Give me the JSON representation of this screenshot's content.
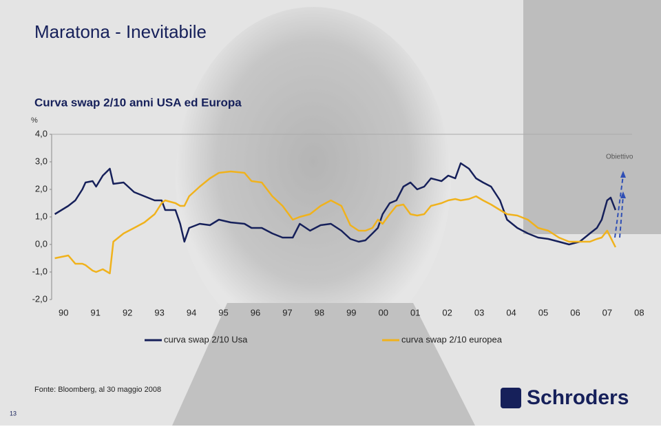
{
  "title": "Maratona - Inevitabile",
  "source": "Fonte: Bloomberg, al 30 maggio 2008",
  "page_number": "13",
  "logo": "Schroders",
  "chart_data": {
    "type": "line",
    "title": "Curva swap 2/10 anni USA ed Europa",
    "y_unit": "%",
    "annotation": "Obiettivo",
    "x": [
      1989.9,
      1990.32,
      1990.54,
      1990.76,
      1990.86,
      1991.08,
      1991.19,
      1991.4,
      1991.62,
      1991.73,
      1992.05,
      1992.38,
      1992.7,
      1993.02,
      1993.24,
      1993.35,
      1993.67,
      1993.82,
      1993.95,
      1994.1,
      1994.43,
      1994.75,
      1995.03,
      1995.4,
      1995.83,
      1996.05,
      1996.37,
      1996.7,
      1997.02,
      1997.34,
      1997.56,
      1997.88,
      1998.21,
      1998.53,
      1998.86,
      1999.14,
      1999.4,
      1999.61,
      1999.83,
      2000.0,
      2000.15,
      2000.37,
      2000.58,
      2000.8,
      2001.02,
      2001.23,
      2001.45,
      2001.66,
      2001.99,
      2002.2,
      2002.42,
      2002.59,
      2002.85,
      2003.07,
      2003.29,
      2003.54,
      2003.82,
      2004.04,
      2004.36,
      2004.69,
      2005.01,
      2005.33,
      2005.66,
      2005.98,
      2006.31,
      2006.63,
      2006.85,
      2007.0,
      2007.17,
      2007.28,
      2007.43
    ],
    "series": [
      {
        "name": "curva swap 2/10 Usa",
        "color": "#16205a",
        "values": [
          1.1,
          1.4,
          1.6,
          2.0,
          2.25,
          2.3,
          2.1,
          2.5,
          2.75,
          2.2,
          2.25,
          1.9,
          1.75,
          1.6,
          1.6,
          1.25,
          1.25,
          0.75,
          0.1,
          0.6,
          0.75,
          0.7,
          0.9,
          0.8,
          0.75,
          0.6,
          0.6,
          0.4,
          0.25,
          0.25,
          0.75,
          0.5,
          0.7,
          0.75,
          0.5,
          0.2,
          0.1,
          0.15,
          0.4,
          0.6,
          1.1,
          1.5,
          1.6,
          2.1,
          2.25,
          2.0,
          2.1,
          2.4,
          2.3,
          2.5,
          2.4,
          2.95,
          2.75,
          2.4,
          2.25,
          2.1,
          1.6,
          0.9,
          0.6,
          0.4,
          0.25,
          0.2,
          0.1,
          0.0,
          0.1,
          0.4,
          0.6,
          0.9,
          1.6,
          1.7,
          1.25
        ]
      },
      {
        "name": "curva swap 2/10 europea",
        "color": "#f0b21c",
        "values": [
          -0.5,
          -0.4,
          -0.7,
          -0.7,
          -0.75,
          -0.95,
          -1.0,
          -0.9,
          -1.05,
          0.1,
          0.4,
          0.6,
          0.8,
          1.1,
          1.5,
          1.6,
          1.5,
          1.4,
          1.4,
          1.75,
          2.1,
          2.4,
          2.6,
          2.65,
          2.6,
          2.3,
          2.25,
          1.75,
          1.4,
          0.9,
          1.0,
          1.1,
          1.4,
          1.6,
          1.4,
          0.7,
          0.5,
          0.5,
          0.6,
          0.9,
          0.75,
          1.1,
          1.4,
          1.45,
          1.1,
          1.05,
          1.1,
          1.4,
          1.5,
          1.6,
          1.65,
          1.6,
          1.65,
          1.75,
          1.6,
          1.45,
          1.25,
          1.1,
          1.05,
          0.9,
          0.6,
          0.5,
          0.25,
          0.1,
          0.1,
          0.1,
          0.2,
          0.25,
          0.5,
          0.25,
          -0.1
        ]
      }
    ],
    "xlim": [
      1989.8,
      2008.1
    ],
    "xticks": [
      {
        "value": 1990,
        "label": "90"
      },
      {
        "value": 1991,
        "label": "91"
      },
      {
        "value": 1992,
        "label": "92"
      },
      {
        "value": 1993,
        "label": "93"
      },
      {
        "value": 1994,
        "label": "94"
      },
      {
        "value": 1995,
        "label": "95"
      },
      {
        "value": 1996,
        "label": "96"
      },
      {
        "value": 1997,
        "label": "97"
      },
      {
        "value": 1998,
        "label": "98"
      },
      {
        "value": 1999,
        "label": "99"
      },
      {
        "value": 2000,
        "label": "00"
      },
      {
        "value": 2001,
        "label": "01"
      },
      {
        "value": 2002,
        "label": "02"
      },
      {
        "value": 2003,
        "label": "03"
      },
      {
        "value": 2004,
        "label": "04"
      },
      {
        "value": 2005,
        "label": "05"
      },
      {
        "value": 2006,
        "label": "06"
      },
      {
        "value": 2007,
        "label": "07"
      },
      {
        "value": 2008,
        "label": "08"
      }
    ],
    "ylim": [
      -2,
      4
    ],
    "yticks": [
      {
        "value": -2,
        "label": "-2,0"
      },
      {
        "value": -1,
        "label": "-1,0"
      },
      {
        "value": 0,
        "label": "0,0"
      },
      {
        "value": 1,
        "label": "1,0"
      },
      {
        "value": 2,
        "label": "2,0"
      },
      {
        "value": 3,
        "label": "3,0"
      },
      {
        "value": 4,
        "label": "4,0"
      }
    ],
    "grid": false
  }
}
